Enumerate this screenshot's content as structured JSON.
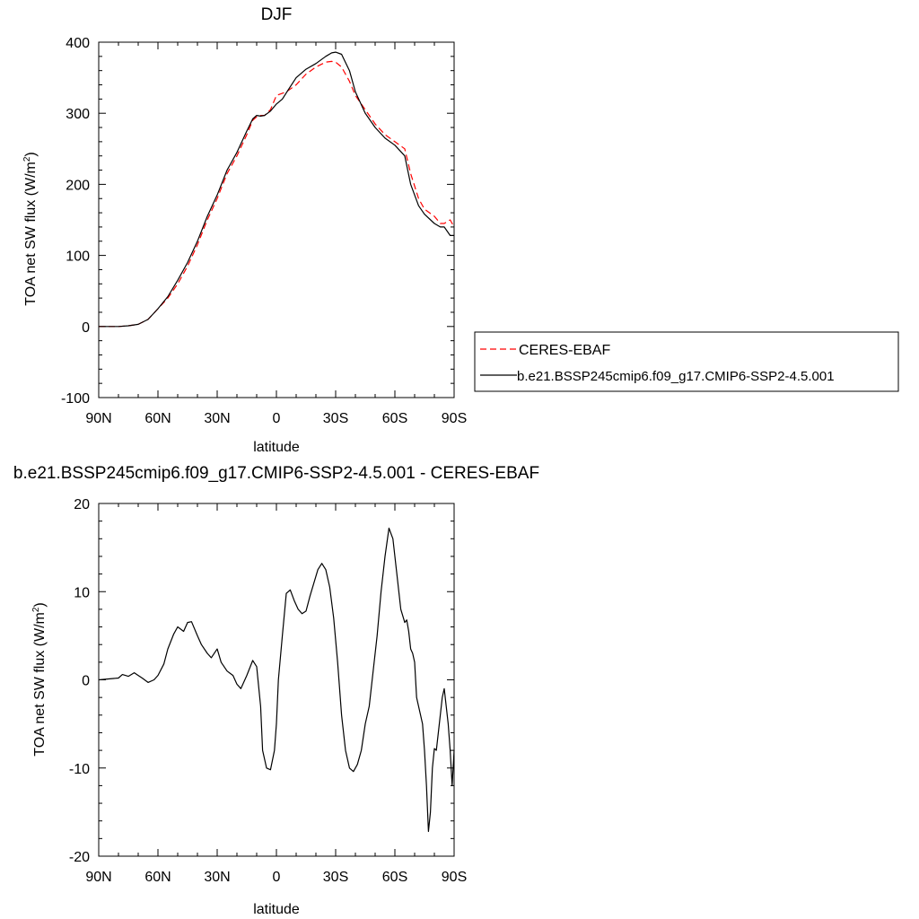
{
  "chart_data": [
    {
      "type": "line",
      "title": "DJF",
      "xlabel": "latitude",
      "ylabel_main": "TOA net SW flux (W/m",
      "ylabel_sup": "2",
      "ylabel_close": ")",
      "xlim": [
        90,
        -90
      ],
      "ylim": [
        -100,
        400
      ],
      "x_ticks": [
        90,
        60,
        30,
        0,
        -30,
        -60,
        -90
      ],
      "x_tick_labels": [
        "90N",
        "60N",
        "30N",
        "0",
        "30S",
        "60S",
        "90S"
      ],
      "y_ticks": [
        -100,
        0,
        100,
        200,
        300,
        400
      ],
      "y_tick_labels": [
        "-100",
        "0",
        "100",
        "200",
        "300",
        "400"
      ],
      "legend": {
        "placement": "right",
        "entries": [
          "CERES-EBAF",
          "b.e21.BSSP245cmip6.f09_g17.CMIP6-SSP2-4.5.001"
        ]
      },
      "series": [
        {
          "name": "CERES-EBAF",
          "color": "#ff0000",
          "style": "dashed",
          "x": [
            90,
            85,
            80,
            75,
            70,
            65,
            60,
            55,
            50,
            45,
            40,
            35,
            30,
            25,
            20,
            15,
            12,
            10,
            8,
            6,
            3,
            0,
            -5,
            -10,
            -15,
            -20,
            -25,
            -28,
            -30,
            -33,
            -37,
            -40,
            -45,
            -50,
            -55,
            -60,
            -65,
            -68,
            -72,
            -75,
            -80,
            -83,
            -85,
            -88,
            -90
          ],
          "y": [
            0,
            0,
            0,
            1,
            3,
            10,
            25,
            40,
            60,
            85,
            115,
            150,
            180,
            215,
            240,
            270,
            290,
            295,
            297,
            297,
            305,
            325,
            330,
            340,
            355,
            365,
            372,
            373,
            372,
            365,
            345,
            325,
            305,
            285,
            270,
            260,
            250,
            215,
            180,
            165,
            155,
            145,
            145,
            150,
            140
          ]
        },
        {
          "name": "b.e21.BSSP245cmip6.f09_g17.CMIP6-SSP2-4.5.001",
          "color": "#000000",
          "style": "solid",
          "x": [
            90,
            85,
            80,
            75,
            70,
            65,
            60,
            55,
            50,
            45,
            40,
            35,
            30,
            25,
            20,
            15,
            12,
            10,
            8,
            6,
            3,
            0,
            -3,
            -6,
            -10,
            -15,
            -20,
            -25,
            -28,
            -30,
            -33,
            -37,
            -40,
            -45,
            -50,
            -55,
            -60,
            -65,
            -68,
            -72,
            -75,
            -80,
            -83,
            -85,
            -88,
            -90
          ],
          "y": [
            0,
            0,
            0,
            1,
            3,
            10,
            25,
            42,
            65,
            90,
            120,
            155,
            185,
            220,
            245,
            275,
            292,
            297,
            296,
            297,
            303,
            313,
            320,
            333,
            350,
            362,
            370,
            380,
            385,
            386,
            383,
            360,
            330,
            300,
            280,
            265,
            255,
            240,
            200,
            170,
            158,
            145,
            140,
            140,
            128,
            128
          ]
        }
      ]
    },
    {
      "type": "line",
      "title": "b.e21.BSSP245cmip6.f09_g17.CMIP6-SSP2-4.5.001 - CERES-EBAF",
      "xlabel": "latitude",
      "ylabel_main": "TOA net SW flux (W/m",
      "ylabel_sup": "2",
      "ylabel_close": ")",
      "xlim": [
        90,
        -90
      ],
      "ylim": [
        -20,
        20
      ],
      "x_ticks": [
        90,
        60,
        30,
        0,
        -30,
        -60,
        -90
      ],
      "x_tick_labels": [
        "90N",
        "60N",
        "30N",
        "0",
        "30S",
        "60S",
        "90S"
      ],
      "y_ticks": [
        -20,
        -10,
        0,
        10,
        20
      ],
      "y_tick_labels": [
        "-20",
        "-10",
        "0",
        "10",
        "20"
      ],
      "series": [
        {
          "color": "#000000",
          "style": "solid",
          "x": [
            90,
            85,
            80,
            78,
            75,
            72,
            70,
            68,
            65,
            62,
            60,
            57,
            55,
            52,
            50,
            47,
            45,
            43,
            40,
            38,
            35,
            33,
            30,
            28,
            25,
            22,
            20,
            18,
            15,
            12,
            10,
            8,
            7,
            5,
            3,
            1,
            0,
            -1,
            -3,
            -5,
            -7,
            -9,
            -11,
            -13,
            -15,
            -17,
            -19,
            -21,
            -23,
            -25,
            -27,
            -29,
            -31,
            -33,
            -35,
            -37,
            -39,
            -41,
            -43,
            -45,
            -47,
            -49,
            -51,
            -53,
            -55,
            -57,
            -59,
            -61,
            -63,
            -65,
            -66,
            -67,
            -68,
            -69,
            -70,
            -71,
            -72,
            -73,
            -74,
            -75,
            -76,
            -77,
            -78,
            -79,
            -80,
            -81,
            -82,
            -83,
            -84,
            -85,
            -86,
            -87,
            -88,
            -89,
            -90
          ],
          "y": [
            0,
            0.1,
            0.2,
            0.6,
            0.4,
            0.8,
            0.5,
            0.2,
            -0.3,
            0.0,
            0.5,
            1.8,
            3.5,
            5.2,
            6.0,
            5.5,
            6.5,
            6.6,
            5.0,
            4.0,
            3.0,
            2.5,
            3.5,
            2.0,
            1.0,
            0.5,
            -0.5,
            -1.0,
            0.5,
            2.2,
            1.5,
            -3.0,
            -8.0,
            -10.0,
            -10.2,
            -8.0,
            -5.0,
            0.0,
            5.0,
            9.8,
            10.2,
            9.0,
            8.0,
            7.5,
            7.8,
            9.5,
            11.0,
            12.5,
            13.2,
            12.5,
            10.5,
            7.0,
            2.0,
            -4.0,
            -8.0,
            -10.0,
            -10.4,
            -9.6,
            -8.0,
            -5.0,
            -3.0,
            1.0,
            5.0,
            10.0,
            14.0,
            17.2,
            16.0,
            12.0,
            8.0,
            6.5,
            6.8,
            5.5,
            3.5,
            3.0,
            2.0,
            -2.0,
            -3.0,
            -4.0,
            -5.0,
            -8.0,
            -12.0,
            -17.2,
            -15.0,
            -10.0,
            -7.8,
            -8.0,
            -6.0,
            -4.0,
            -2.0,
            -1.0,
            -3.0,
            -5.0,
            -8.0,
            -12.0,
            -8.0
          ]
        }
      ]
    }
  ]
}
